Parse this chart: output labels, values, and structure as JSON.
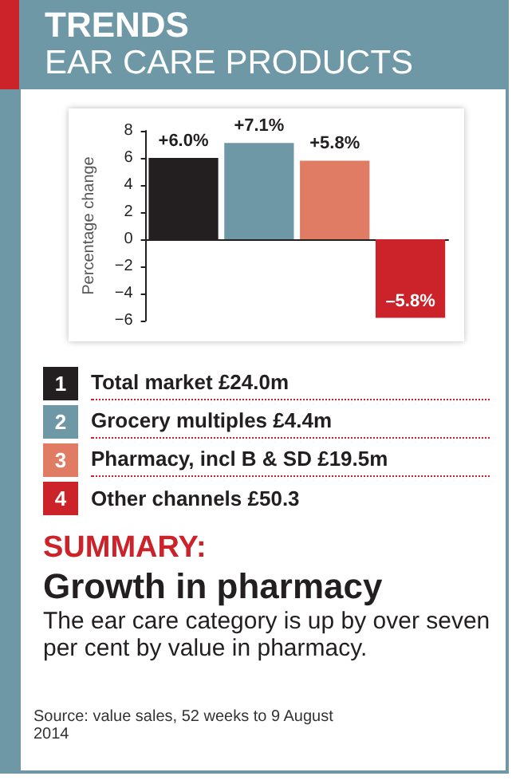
{
  "chart_data": {
    "type": "bar",
    "title": "TRENDS",
    "subtitle": "EAR CARE PRODUCTS",
    "ylabel": "Percentage change",
    "categories": [
      null,
      null,
      null,
      null
    ],
    "series": [
      {
        "name": "Total market £24.0m",
        "color": "#231f20",
        "values": [
          6.0,
          null,
          null,
          null
        ],
        "value_labels": [
          "+6.0%",
          null,
          null,
          null
        ]
      },
      {
        "name": "Grocery multiples £4.4m",
        "color": "#6f98a6",
        "values": [
          null,
          7.1,
          null,
          null
        ],
        "value_labels": [
          null,
          "+7.1%",
          null,
          null
        ]
      },
      {
        "name": "Pharmacy, incl B & SD £19.5m",
        "color": "#e07b64",
        "values": [
          null,
          null,
          5.8,
          null
        ],
        "value_labels": [
          null,
          null,
          "+5.8%",
          null
        ]
      },
      {
        "name": "Other channels £50.3",
        "color": "#cc2229",
        "values": [
          null,
          null,
          null,
          -5.8
        ],
        "value_labels": [
          null,
          null,
          null,
          "–5.8%"
        ]
      }
    ],
    "ylim": [
      -6,
      8
    ],
    "yticks": [
      -6,
      -4,
      -2,
      0,
      2,
      4,
      6,
      8
    ],
    "legend": "bottom",
    "annotations": [
      "1",
      "2",
      "3",
      "4",
      "SUMMARY:",
      "Growth in pharmacy",
      "The ear care category is up by over seven per cent by value in pharmacy.",
      "Source: value sales, 52 weeks to 9 August 2014"
    ]
  }
}
